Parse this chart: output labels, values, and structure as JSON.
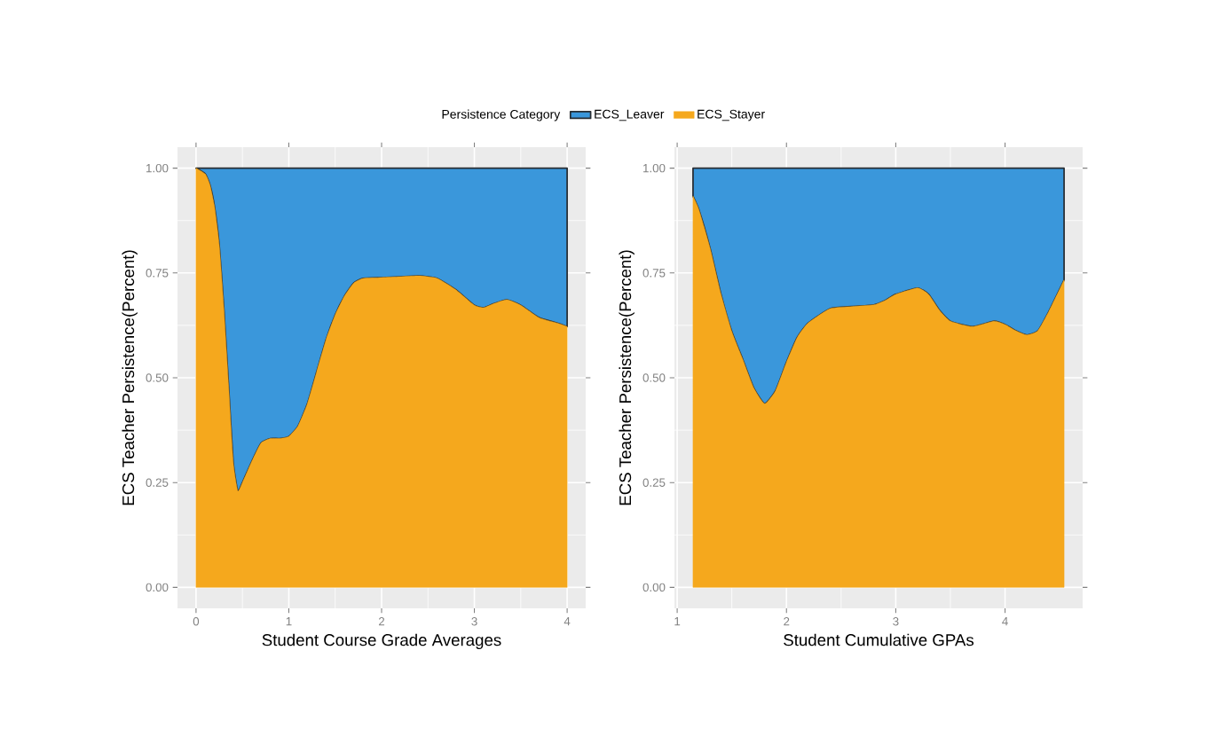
{
  "chart_data": [
    {
      "type": "area",
      "stacked": true,
      "xlabel": "Student Course Grade Averages",
      "ylabel": "ECS Teacher Persistence(Percent)",
      "legend_title": "Persistence Category",
      "legend": "top",
      "grid": true,
      "xlim": [
        -0.2,
        4.2
      ],
      "xticks": [
        0,
        1,
        2,
        3,
        4
      ],
      "ylim": [
        -0.05,
        1.05
      ],
      "yticks": [
        {
          "value": 0,
          "label": "0.00"
        },
        {
          "value": 0.25,
          "label": "0.25"
        },
        {
          "value": 0.5,
          "label": "0.50"
        },
        {
          "value": 0.75,
          "label": "0.75"
        },
        {
          "value": 1,
          "label": "1.00"
        }
      ],
      "x": [
        0,
        0.1,
        0.15,
        0.2,
        0.25,
        0.3,
        0.35,
        0.4,
        0.45,
        0.5,
        0.6,
        0.7,
        0.8,
        0.9,
        1.0,
        1.1,
        1.2,
        1.3,
        1.4,
        1.5,
        1.6,
        1.7,
        1.8,
        2.0,
        2.2,
        2.4,
        2.6,
        2.8,
        3.0,
        3.1,
        3.2,
        3.35,
        3.5,
        3.7,
        3.9,
        4.0
      ],
      "series": [
        {
          "name": "ECS_Stayer",
          "color": "#f5a81d",
          "values": [
            1.0,
            0.986,
            0.96,
            0.907,
            0.816,
            0.665,
            0.484,
            0.3,
            0.23,
            0.25,
            0.3,
            0.344,
            0.355,
            0.355,
            0.36,
            0.385,
            0.438,
            0.514,
            0.59,
            0.65,
            0.695,
            0.726,
            0.737,
            0.739,
            0.741,
            0.743,
            0.737,
            0.71,
            0.673,
            0.667,
            0.676,
            0.686,
            0.673,
            0.643,
            0.63,
            0.622
          ]
        },
        {
          "name": "ECS_Leaver",
          "color": "#3a97db",
          "values": [
            0.0,
            0.014,
            0.04,
            0.093,
            0.184,
            0.335,
            0.516,
            0.7,
            0.77,
            0.75,
            0.7,
            0.656,
            0.645,
            0.645,
            0.64,
            0.615,
            0.562,
            0.486,
            0.41,
            0.35,
            0.305,
            0.274,
            0.263,
            0.261,
            0.259,
            0.257,
            0.263,
            0.29,
            0.327,
            0.333,
            0.324,
            0.314,
            0.327,
            0.357,
            0.37,
            0.378
          ]
        }
      ]
    },
    {
      "type": "area",
      "stacked": true,
      "xlabel": "Student Cumulative GPAs",
      "ylabel": "ECS Teacher Persistence(Percent)",
      "grid": true,
      "xlim": [
        0.975,
        4.71
      ],
      "xticks": [
        1,
        2,
        3,
        4
      ],
      "ylim": [
        -0.05,
        1.05
      ],
      "yticks": [
        {
          "value": 0,
          "label": "0.00"
        },
        {
          "value": 0.25,
          "label": "0.25"
        },
        {
          "value": 0.5,
          "label": "0.50"
        },
        {
          "value": 0.75,
          "label": "0.75"
        },
        {
          "value": 1,
          "label": "1.00"
        }
      ],
      "x": [
        1.145,
        1.2,
        1.3,
        1.4,
        1.5,
        1.6,
        1.7,
        1.8,
        1.9,
        2.0,
        2.1,
        2.2,
        2.4,
        2.6,
        2.8,
        2.9,
        3.0,
        3.2,
        3.3,
        3.4,
        3.5,
        3.7,
        3.9,
        4.0,
        4.1,
        4.2,
        4.3,
        4.4,
        4.54
      ],
      "series": [
        {
          "color": "#f5a81d",
          "values": [
            0.933,
            0.9,
            0.81,
            0.7,
            0.61,
            0.544,
            0.476,
            0.438,
            0.469,
            0.537,
            0.597,
            0.631,
            0.665,
            0.67,
            0.674,
            0.684,
            0.699,
            0.714,
            0.699,
            0.661,
            0.635,
            0.622,
            0.635,
            0.627,
            0.612,
            0.602,
            0.612,
            0.658,
            0.733
          ]
        },
        {
          "color": "#3a97db",
          "values": [
            0.067,
            0.1,
            0.19,
            0.3,
            0.39,
            0.456,
            0.524,
            0.562,
            0.531,
            0.463,
            0.403,
            0.369,
            0.335,
            0.33,
            0.326,
            0.316,
            0.301,
            0.286,
            0.301,
            0.339,
            0.365,
            0.378,
            0.365,
            0.373,
            0.388,
            0.398,
            0.388,
            0.342,
            0.267
          ]
        }
      ]
    }
  ]
}
